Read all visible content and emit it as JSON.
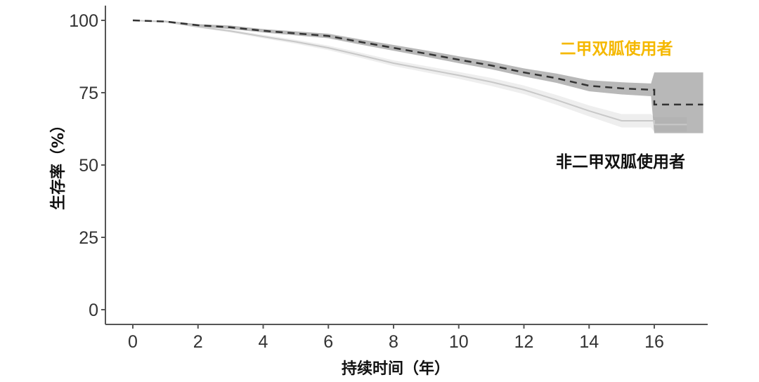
{
  "chart_data": {
    "type": "line",
    "title": "",
    "xlabel": "持续时间（年）",
    "ylabel": "生存率（%）",
    "xlim": [
      -0.8,
      17.6
    ],
    "ylim": [
      -5,
      104
    ],
    "xticks": [
      0,
      2,
      4,
      6,
      8,
      10,
      12,
      14,
      16
    ],
    "yticks": [
      0,
      25,
      50,
      75,
      100
    ],
    "grid": false,
    "legend": "inline labels right",
    "series": [
      {
        "name": "二甲双胍使用者",
        "label_color": "#F5B800",
        "line_style": "dashed",
        "line_color": "#333333",
        "band_color": "#9a9a9a",
        "x": [
          0,
          1,
          2,
          3,
          4,
          5,
          6,
          7,
          8,
          9,
          10,
          11,
          12,
          13,
          14,
          15,
          15.9,
          16,
          17.5
        ],
        "y": [
          100,
          99.6,
          98.3,
          97.6,
          96.4,
          95.5,
          94.6,
          92.5,
          90.5,
          88.5,
          86.4,
          84.4,
          82,
          80,
          77.4,
          76.5,
          76,
          70.9,
          70.9
        ],
        "ci_lower": [
          100,
          99.3,
          97.9,
          97.0,
          95.8,
          94.8,
          93.8,
          91.6,
          89.5,
          87.4,
          85.2,
          83.1,
          80.6,
          78.4,
          75.5,
          74.4,
          73.8,
          61,
          61
        ],
        "ci_upper": [
          100,
          99.9,
          98.7,
          98.2,
          97.0,
          96.2,
          95.4,
          93.4,
          91.5,
          89.6,
          87.6,
          85.7,
          83.4,
          81.6,
          79.3,
          78.6,
          78.2,
          82,
          82
        ]
      },
      {
        "name": "非二甲双胍使用者",
        "label_color": "#111111",
        "line_style": "solid",
        "line_color": "#c8c8c8",
        "band_color": "#ececec",
        "x": [
          0,
          1,
          2,
          3,
          4,
          5,
          6,
          7,
          8,
          9,
          10,
          11,
          12,
          13,
          14,
          15,
          15.9,
          16,
          17
        ],
        "y": [
          100,
          99.5,
          97.8,
          96.3,
          94.4,
          92.6,
          90.5,
          87.9,
          85.2,
          83.1,
          81,
          78.7,
          76,
          72.5,
          68.7,
          65.3,
          65.3,
          64,
          64
        ],
        "ci_lower": [
          100,
          99.3,
          97.4,
          95.8,
          93.8,
          91.9,
          89.7,
          87.0,
          84.2,
          82.0,
          79.8,
          77.3,
          74.5,
          70.8,
          66.8,
          63.0,
          63.0,
          61.5,
          61.5
        ],
        "ci_upper": [
          100,
          99.7,
          98.2,
          96.8,
          95.0,
          93.3,
          91.3,
          88.8,
          86.2,
          84.2,
          82.2,
          80.1,
          77.5,
          74.2,
          70.6,
          67.6,
          67.6,
          66.5,
          66.5
        ]
      }
    ]
  }
}
